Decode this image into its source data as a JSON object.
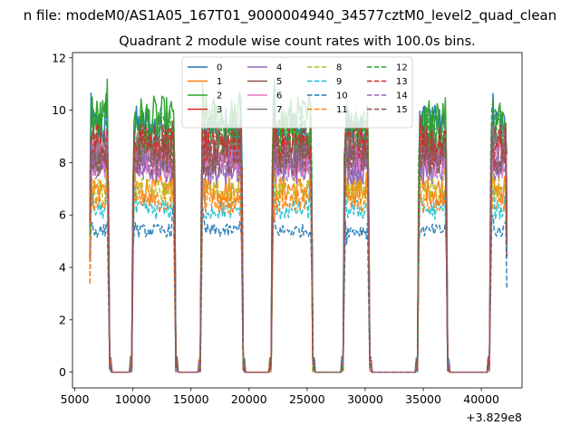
{
  "chart_data": {
    "type": "line",
    "suptitle": "n file: modeM0/AS1A05_167T01_9000004940_34577cztM0_level2_quad_clean",
    "title": "Quadrant 2 module wise count rates with 100.0s bins.",
    "xlabel": "",
    "ylabel": "",
    "x_offset_label": "+3.829e8",
    "xlim": [
      4800,
      43500
    ],
    "ylim": [
      -0.6,
      12.2
    ],
    "xticks": [
      5000,
      10000,
      15000,
      20000,
      25000,
      30000,
      35000,
      40000
    ],
    "yticks": [
      0,
      2,
      4,
      6,
      8,
      10,
      12
    ],
    "legend": {
      "location": "upper-center",
      "columns": 4
    },
    "active_intervals": [
      [
        6300,
        7900
      ],
      [
        10000,
        13600
      ],
      [
        15900,
        19400
      ],
      [
        22000,
        25400
      ],
      [
        28200,
        30300
      ],
      [
        34600,
        37000
      ],
      [
        40800,
        42200
      ]
    ],
    "baseline_value": 0,
    "series": [
      {
        "name": "0",
        "color": "#1f77b4",
        "dash": "solid",
        "level": 9.3
      },
      {
        "name": "1",
        "color": "#ff7f0e",
        "dash": "solid",
        "level": 7.0
      },
      {
        "name": "2",
        "color": "#2ca02c",
        "dash": "solid",
        "level": 9.6
      },
      {
        "name": "3",
        "color": "#d62728",
        "dash": "solid",
        "level": 8.3
      },
      {
        "name": "4",
        "color": "#9467bd",
        "dash": "solid",
        "level": 7.8
      },
      {
        "name": "5",
        "color": "#8c564b",
        "dash": "solid",
        "level": 8.6
      },
      {
        "name": "6",
        "color": "#e377c2",
        "dash": "solid",
        "level": 8.1
      },
      {
        "name": "7",
        "color": "#7f7f7f",
        "dash": "solid",
        "level": 8.4
      },
      {
        "name": "8",
        "color": "#bcbd22",
        "dash": "dashed",
        "level": 6.9
      },
      {
        "name": "9",
        "color": "#17becf",
        "dash": "dashed",
        "level": 6.2
      },
      {
        "name": "10",
        "color": "#1f77b4",
        "dash": "dashed",
        "level": 5.4
      },
      {
        "name": "11",
        "color": "#ff7f0e",
        "dash": "dashed",
        "level": 6.5
      },
      {
        "name": "12",
        "color": "#2ca02c",
        "dash": "dashed",
        "level": 9.2
      },
      {
        "name": "13",
        "color": "#d62728",
        "dash": "dashed",
        "level": 8.7
      },
      {
        "name": "14",
        "color": "#9467bd",
        "dash": "dashed",
        "level": 8.0
      },
      {
        "name": "15",
        "color": "#8c564b",
        "dash": "dashed",
        "level": 8.2
      }
    ]
  }
}
